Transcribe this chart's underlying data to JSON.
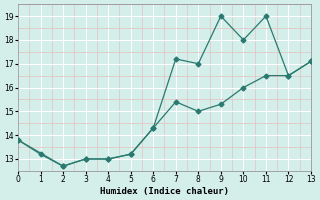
{
  "line1_x": [
    0,
    1,
    2,
    3,
    4,
    5,
    6,
    7,
    8,
    9,
    10,
    11,
    12,
    13
  ],
  "line1_y": [
    13.8,
    13.2,
    12.7,
    13.0,
    13.0,
    13.2,
    14.3,
    15.4,
    15.0,
    15.3,
    16.0,
    16.5,
    16.5,
    17.1
  ],
  "line2_x": [
    0,
    2,
    3,
    4,
    5,
    6,
    7,
    8,
    9,
    10,
    11,
    12,
    13
  ],
  "line2_y": [
    13.8,
    12.7,
    13.0,
    13.0,
    13.2,
    14.3,
    17.2,
    17.0,
    19.0,
    18.0,
    19.0,
    16.5,
    17.1
  ],
  "line_color": "#2a7a6f",
  "bg_color": "#d4eeea",
  "grid_major_color": "#ffffff",
  "grid_minor_color": "#e0c8c8",
  "xlabel": "Humidex (Indice chaleur)",
  "xlim": [
    0,
    13
  ],
  "ylim": [
    12.5,
    19.5
  ],
  "yticks": [
    13,
    14,
    15,
    16,
    17,
    18,
    19
  ],
  "xticks": [
    0,
    1,
    2,
    3,
    4,
    5,
    6,
    7,
    8,
    9,
    10,
    11,
    12,
    13
  ]
}
